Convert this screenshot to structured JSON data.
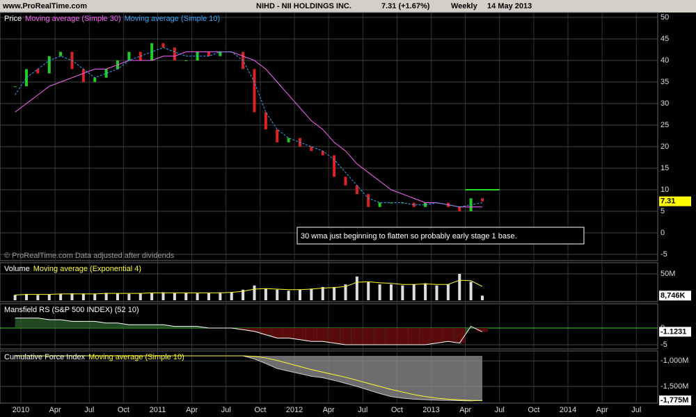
{
  "header": {
    "site": "www.ProRealTime.com",
    "symbol": "NIHD - NII HOLDINGS INC.",
    "quote": "7.31 (+1.67%)",
    "period": "Weekly",
    "date": "14 May 2013"
  },
  "annotation": "30 wma just beginning to flatten so probably early stage 1 base.",
  "copyright": "© ProRealTime.com  Data adjusted after dividends",
  "time_axis": [
    {
      "value": "2010-01",
      "label": "2010"
    },
    {
      "value": "2010-04",
      "label": "Apr"
    },
    {
      "value": "2010-07",
      "label": "Jul"
    },
    {
      "value": "2010-10",
      "label": "Oct"
    },
    {
      "value": "2011-01",
      "label": "2011"
    },
    {
      "value": "2011-04",
      "label": "Apr"
    },
    {
      "value": "2011-07",
      "label": "Jul"
    },
    {
      "value": "2011-10",
      "label": "Oct"
    },
    {
      "value": "2012-01",
      "label": "2012"
    },
    {
      "value": "2012-04",
      "label": "Apr"
    },
    {
      "value": "2012-07",
      "label": "Jul"
    },
    {
      "value": "2012-10",
      "label": "Oct"
    },
    {
      "value": "2013-01",
      "label": "2013"
    },
    {
      "value": "2013-04",
      "label": "Apr"
    },
    {
      "value": "2013-07",
      "label": "Jul"
    },
    {
      "value": "2013-10",
      "label": "Oct"
    },
    {
      "value": "2014-01",
      "label": "2014"
    },
    {
      "value": "2014-04",
      "label": "Apr"
    },
    {
      "value": "2014-07",
      "label": "Jul"
    }
  ],
  "chart_data": [
    {
      "type": "candlestick",
      "title": "Price",
      "x": [
        "2009-12",
        "2010-01",
        "2010-02",
        "2010-03",
        "2010-04",
        "2010-05",
        "2010-06",
        "2010-07",
        "2010-08",
        "2010-09",
        "2010-10",
        "2010-11",
        "2010-12",
        "2011-01",
        "2011-02",
        "2011-03",
        "2011-04",
        "2011-05",
        "2011-06",
        "2011-07",
        "2011-08",
        "2011-09",
        "2011-10",
        "2011-11",
        "2011-12",
        "2012-01",
        "2012-02",
        "2012-03",
        "2012-04",
        "2012-05",
        "2012-06",
        "2012-07",
        "2012-08",
        "2012-09",
        "2012-10",
        "2012-11",
        "2012-12",
        "2013-01",
        "2013-02",
        "2013-03",
        "2013-04",
        "2013-05"
      ],
      "values": [
        34,
        38,
        37,
        41,
        42,
        38,
        35,
        36,
        38,
        40,
        42,
        40,
        44,
        43,
        40,
        40,
        42,
        41,
        42,
        42,
        38,
        28,
        24,
        21,
        22,
        20,
        19,
        18,
        13,
        11,
        9,
        6,
        7,
        7,
        7,
        6,
        7,
        7,
        6,
        5,
        8,
        7.31
      ],
      "series": [
        {
          "name": "Moving average (Simple 30)",
          "color": "#ff66ff",
          "values": [
            28,
            30,
            32,
            34,
            35,
            36,
            37,
            38,
            38,
            39,
            40,
            40,
            40,
            41,
            41,
            42,
            42,
            42,
            42,
            42,
            41,
            40,
            38,
            35,
            32,
            29,
            26,
            24,
            21,
            19,
            16,
            14,
            12,
            10,
            9,
            8,
            7,
            7,
            6.5,
            6,
            6,
            6
          ]
        },
        {
          "name": "Moving average (Simple 10)",
          "color": "#33aaff",
          "values": [
            32,
            36,
            38,
            40,
            41,
            40,
            38,
            36,
            37,
            38,
            40,
            41,
            42,
            43,
            42,
            41,
            41,
            41,
            42,
            42,
            40,
            35,
            28,
            24,
            22,
            21,
            20,
            19,
            17,
            14,
            11,
            8,
            7,
            7,
            7,
            6.5,
            6.5,
            7,
            6.5,
            6,
            6.5,
            7
          ]
        }
      ],
      "resistance": {
        "value": 10,
        "from": "2013-04",
        "to": "2013-07"
      },
      "ylim": [
        -5,
        50
      ],
      "yticks": [
        -5,
        0,
        5,
        10,
        15,
        20,
        25,
        30,
        35,
        40,
        45,
        50
      ]
    },
    {
      "type": "bar",
      "title": "Volume",
      "values": [
        10,
        12,
        10,
        11,
        12,
        13,
        12,
        12,
        14,
        13,
        12,
        13,
        14,
        15,
        14,
        14,
        13,
        14,
        15,
        15,
        20,
        28,
        22,
        20,
        18,
        20,
        22,
        25,
        25,
        30,
        45,
        35,
        30,
        30,
        28,
        30,
        32,
        28,
        30,
        50,
        35,
        8.746
      ],
      "value_labels": {
        "41": "8,746K"
      },
      "series": [
        {
          "name": "Moving average (Exponential 4)",
          "color": "#ffff33",
          "values": [
            10,
            11,
            11,
            11,
            12,
            12,
            12,
            12,
            13,
            13,
            13,
            13,
            14,
            14,
            14,
            14,
            14,
            14,
            14,
            15,
            17,
            21,
            22,
            21,
            20,
            20,
            21,
            23,
            24,
            26,
            34,
            35,
            33,
            32,
            30,
            30,
            31,
            30,
            30,
            38,
            37,
            26
          ]
        }
      ],
      "ylim": [
        0,
        50
      ],
      "yticks": [
        {
          "value": 50,
          "label": "50M"
        }
      ]
    },
    {
      "type": "area",
      "title": "Mansfield RS (S&P 500 INDEX) (52 10)",
      "values": [
        3,
        3,
        3,
        2.5,
        2.5,
        2,
        2,
        2,
        1.5,
        1.5,
        1,
        1,
        1,
        1,
        0.5,
        0.5,
        0.5,
        0,
        0,
        0,
        -0.5,
        -1,
        -2,
        -3,
        -3,
        -3.5,
        -4,
        -4,
        -4.5,
        -5,
        -5,
        -5,
        -5,
        -5,
        -5,
        -5,
        -5,
        -4.5,
        -4,
        -4.5,
        0.5,
        -1.1231
      ],
      "ylim": [
        -5,
        5
      ],
      "yticks": [
        0,
        -5
      ]
    },
    {
      "type": "area",
      "title": "Cumulative Force Index",
      "values": [
        -900,
        -900,
        -900,
        -900,
        -900,
        -900,
        -900,
        -900,
        -900,
        -900,
        -900,
        -900,
        -900,
        -900,
        -900,
        -900,
        -900,
        -900,
        -900,
        -900,
        -900,
        -960,
        -1050,
        -1150,
        -1200,
        -1250,
        -1300,
        -1330,
        -1380,
        -1440,
        -1500,
        -1570,
        -1640,
        -1700,
        -1730,
        -1750,
        -1760,
        -1770,
        -1775,
        -1780,
        -1785,
        -1775
      ],
      "value_labels": {
        "41": "-1,775M"
      },
      "series": [
        {
          "name": "Moving average (Simple 10)",
          "color": "#ffff33",
          "values": [
            -900,
            -900,
            -900,
            -900,
            -900,
            -900,
            -900,
            -900,
            -900,
            -900,
            -900,
            -900,
            -900,
            -900,
            -900,
            -900,
            -900,
            -900,
            -900,
            -900,
            -900,
            -910,
            -940,
            -990,
            -1050,
            -1110,
            -1170,
            -1220,
            -1270,
            -1320,
            -1380,
            -1440,
            -1500,
            -1560,
            -1610,
            -1660,
            -1700,
            -1730,
            -1750,
            -1765,
            -1775,
            -1778
          ]
        }
      ],
      "ylim": [
        -1800,
        -900
      ],
      "yticks": [
        {
          "value": -1000,
          "label": "-1,000M"
        },
        {
          "value": -1500,
          "label": "-1,500M"
        }
      ]
    }
  ]
}
